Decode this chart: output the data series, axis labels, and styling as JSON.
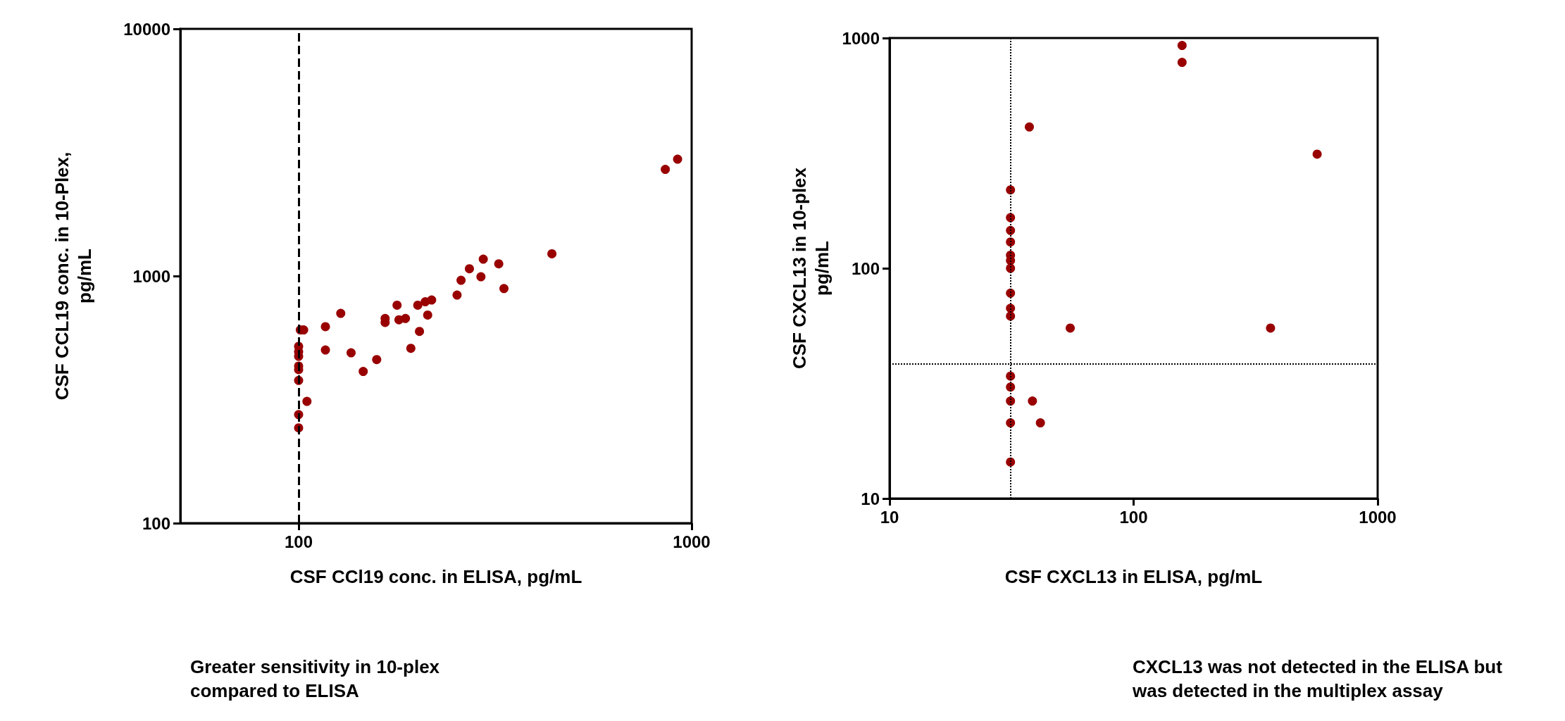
{
  "chart_data": [
    {
      "type": "scatter",
      "xlabel": "CSF CCl19 conc. in ELISA, pg/mL",
      "ylabel": "CSF CCL19 conc. in 10-Plex, pg/mL",
      "log": "xy",
      "grid": false,
      "marker": "circle",
      "xlim": [
        50,
        1000
      ],
      "xticks": [
        100,
        1000
      ],
      "ylim": [
        100,
        10000
      ],
      "yticks": [
        100,
        1000,
        10000
      ],
      "ref_lines": [
        {
          "axis": "x",
          "value": 100,
          "line_style": "dashed",
          "color": "#000000"
        }
      ],
      "annotations": [
        "Greater sensitivity in 10-plex compared to ELISA"
      ],
      "series": [
        {
          "color": "#990000",
          "x": [
            921,
            857,
            441,
            295,
            323,
            272,
            259,
            291,
            333,
            253,
            218,
            210,
            201,
            178,
            213,
            187,
            180,
            166,
            166,
            128,
            117,
            103,
            101,
            203,
            117,
            193,
            136,
            158,
            146,
            105,
            100,
            100,
            100,
            100,
            100,
            100,
            100,
            100
          ],
          "values": [
            2970,
            2700,
            1230,
            1170,
            1120,
            1070,
            961,
            993,
            890,
            837,
            800,
            787,
            762,
            762,
            695,
            673,
            665,
            673,
            649,
            706,
            624,
            605,
            605,
            597,
            502,
            510,
            489,
            459,
            411,
            311,
            519,
            494,
            473,
            432,
            418,
            378,
            275,
            243
          ]
        }
      ]
    },
    {
      "type": "scatter",
      "xlabel": "CSF CXCL13 in ELISA, pg/mL",
      "ylabel": "CSF CXCL13 in 10-plex pg/mL",
      "log": "xy",
      "grid": false,
      "marker": "circle",
      "xlim": [
        10,
        1000
      ],
      "xticks": [
        10,
        100,
        1000
      ],
      "ylim": [
        10,
        1000
      ],
      "yticks": [
        10,
        100,
        1000
      ],
      "ref_lines": [
        {
          "axis": "x",
          "value": 31.3,
          "line_style": "dotted",
          "color": "#000000"
        },
        {
          "axis": "y",
          "value": 38.5,
          "line_style": "dotted",
          "color": "#000000"
        }
      ],
      "annotations": [
        "CXCL13 was not detected in the ELISA  but was detected in the multiplex assay"
      ],
      "series": [
        {
          "color": "#990000",
          "x": [
            158,
            158,
            37.4,
            565,
            31.3,
            31.3,
            31.3,
            31.3,
            31.3,
            31.3,
            31.3,
            31.3,
            31.3,
            31.3,
            55,
            364,
            31.3,
            31.3,
            31.3,
            38.5,
            31.3,
            41.5,
            31.3
          ],
          "values": [
            928,
            784,
            411,
            313,
            219,
            166,
            146,
            130,
            114,
            108,
            100,
            78,
            67,
            62,
            55,
            55,
            34,
            30.5,
            26.5,
            26.5,
            21.3,
            21.3,
            14.4
          ]
        }
      ]
    }
  ]
}
